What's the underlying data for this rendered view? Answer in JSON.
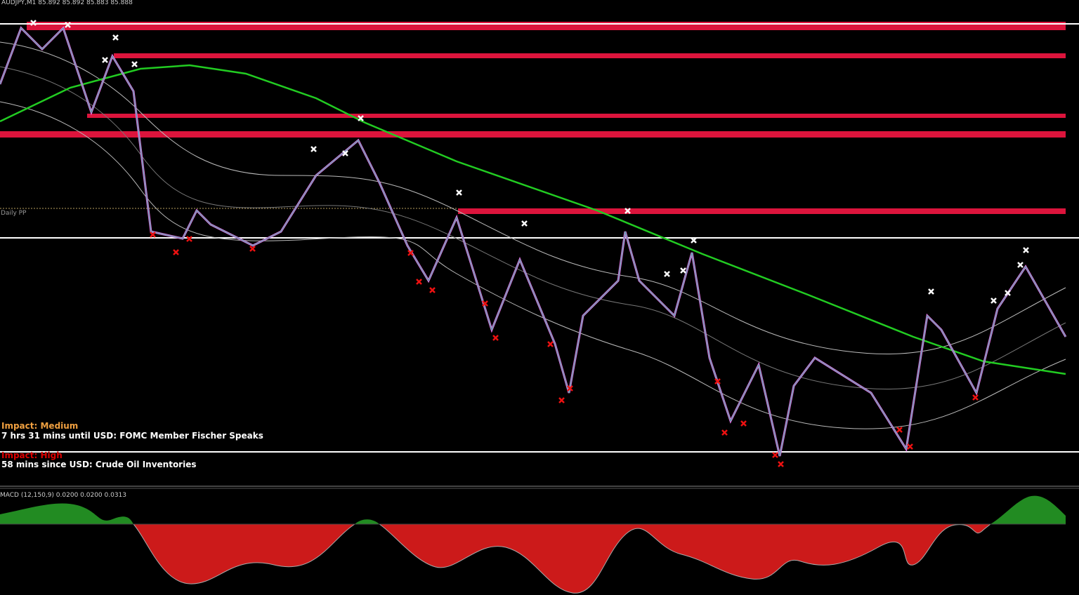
{
  "header": {
    "symbol": "AUDJPY,M1 85.892 85.892 85.883 85.888"
  },
  "labels": {
    "pivot": "Daily PP"
  },
  "news": [
    {
      "impact": "Impact: Medium",
      "text": "7 hrs 31 mins until USD: FOMC Member Fischer Speaks"
    },
    {
      "impact": "Impact: High",
      "text": "58 mins since USD: Crude Oil Inventories"
    }
  ],
  "macd": {
    "label": "MACD (12,150,9) 0.0200 0.0200 0.0313"
  }
}
